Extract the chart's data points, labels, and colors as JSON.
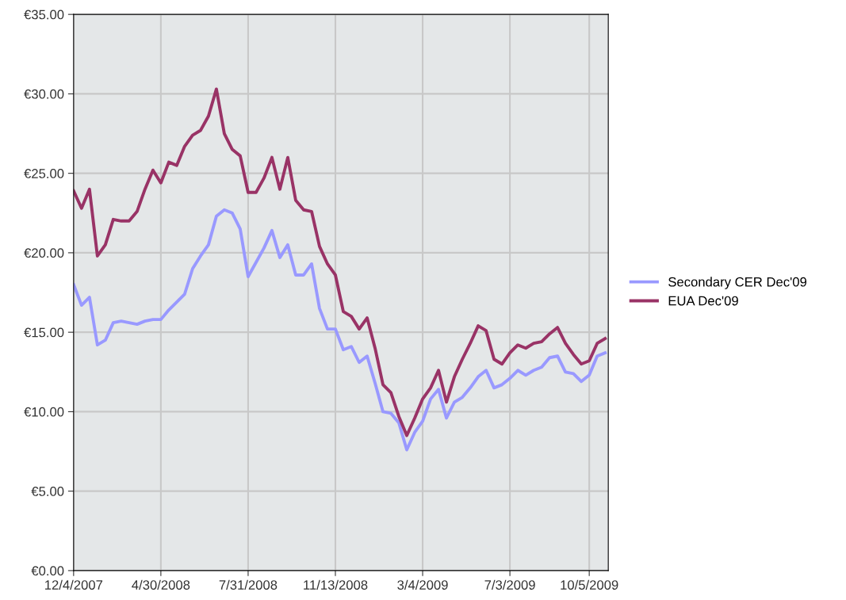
{
  "chart_data": {
    "type": "line",
    "categories": [
      "12/4/2007",
      null,
      null,
      null,
      null,
      null,
      null,
      null,
      null,
      null,
      null,
      "4/30/2008",
      null,
      null,
      null,
      null,
      null,
      null,
      null,
      null,
      null,
      null,
      "7/31/2008",
      null,
      null,
      null,
      null,
      null,
      null,
      null,
      null,
      null,
      null,
      "11/13/2008",
      null,
      null,
      null,
      null,
      null,
      null,
      null,
      null,
      null,
      null,
      "3/4/2009",
      null,
      null,
      null,
      null,
      null,
      null,
      null,
      null,
      null,
      null,
      "7/3/2009",
      null,
      null,
      null,
      null,
      null,
      null,
      null,
      null,
      null,
      "10/5/2009",
      null,
      null
    ],
    "ylim": [
      0,
      35
    ],
    "yticks": [
      {
        "value": 0,
        "label": "€0.00"
      },
      {
        "value": 5,
        "label": "€5.00"
      },
      {
        "value": 10,
        "label": "€10.00"
      },
      {
        "value": 15,
        "label": "€15.00"
      },
      {
        "value": 20,
        "label": "€20.00"
      },
      {
        "value": 25,
        "label": "€25.00"
      },
      {
        "value": 30,
        "label": "€30.00"
      },
      {
        "value": 35,
        "label": "€35.00"
      }
    ],
    "grid": true,
    "legend": "right",
    "marker": "none",
    "line_style": "solid",
    "series": [
      {
        "name": "Secondary CER Dec'09",
        "color": "#9999ff",
        "values": [
          18.0,
          16.7,
          17.2,
          14.2,
          14.5,
          15.6,
          15.7,
          15.6,
          15.5,
          15.7,
          15.8,
          15.8,
          16.4,
          16.9,
          17.4,
          19.0,
          19.8,
          20.5,
          22.3,
          22.7,
          22.5,
          21.5,
          18.5,
          19.4,
          20.3,
          21.4,
          19.7,
          20.5,
          18.6,
          18.6,
          19.3,
          16.5,
          15.2,
          15.2,
          13.9,
          14.1,
          13.1,
          13.5,
          11.8,
          10.0,
          9.9,
          9.3,
          7.6,
          8.7,
          9.4,
          10.8,
          11.4,
          9.6,
          10.6,
          10.9,
          11.5,
          12.2,
          12.6,
          11.5,
          11.7,
          12.1,
          12.6,
          12.3,
          12.6,
          12.8,
          13.4,
          13.5,
          12.5,
          12.4,
          11.9,
          12.3,
          13.5,
          13.7
        ]
      },
      {
        "name": "EUA Dec'09",
        "color": "#993366",
        "values": [
          23.9,
          22.8,
          24.0,
          19.8,
          20.5,
          22.1,
          22.0,
          22.0,
          22.6,
          24.0,
          25.2,
          24.4,
          25.7,
          25.5,
          26.7,
          27.4,
          27.7,
          28.6,
          30.3,
          27.5,
          26.5,
          26.1,
          23.8,
          23.8,
          24.7,
          26.0,
          24.0,
          26.0,
          23.3,
          22.7,
          22.6,
          20.4,
          19.3,
          18.6,
          16.3,
          16.0,
          15.2,
          15.9,
          14.0,
          11.7,
          11.2,
          9.7,
          8.5,
          9.6,
          10.8,
          11.5,
          12.6,
          10.6,
          12.2,
          13.3,
          14.3,
          15.4,
          15.1,
          13.3,
          13.0,
          13.7,
          14.2,
          14.0,
          14.3,
          14.4,
          14.9,
          15.3,
          14.3,
          13.6,
          13.0,
          13.2,
          14.3,
          14.6
        ]
      }
    ]
  }
}
